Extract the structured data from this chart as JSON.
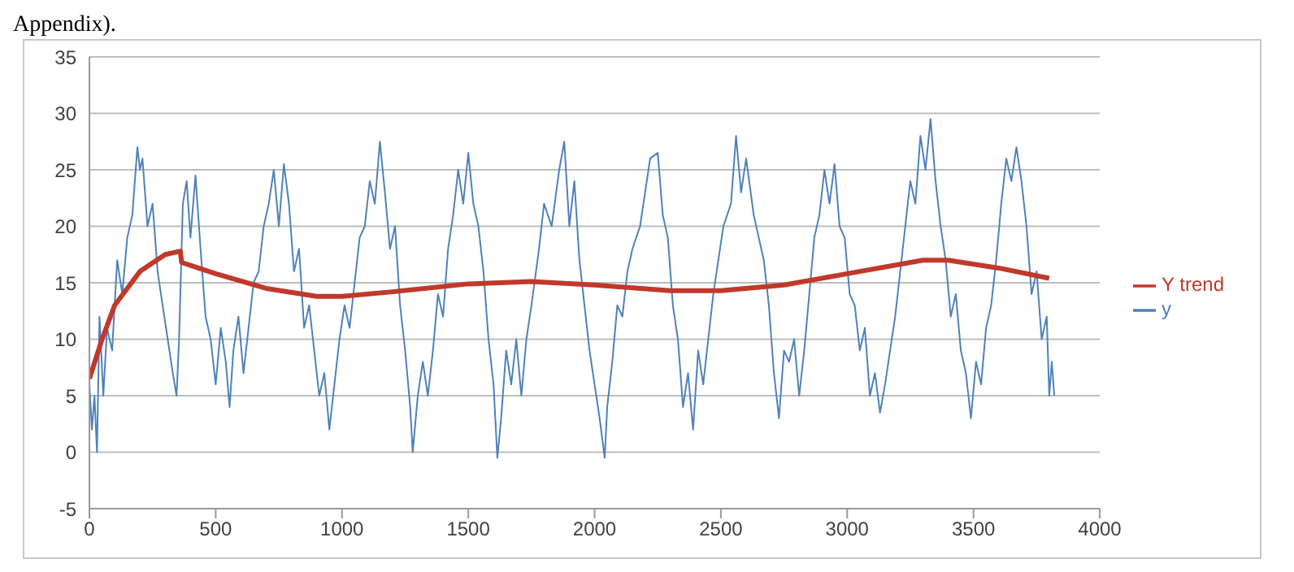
{
  "chart_data": {
    "type": "line",
    "annotations": [
      "Appendix)."
    ],
    "xlim": [
      0,
      4000
    ],
    "xticks": [
      0,
      500,
      1000,
      1500,
      2000,
      2500,
      3000,
      3500,
      4000
    ],
    "ylim": [
      -5,
      35
    ],
    "yticks": [
      -5,
      0,
      5,
      10,
      15,
      20,
      25,
      30,
      35
    ],
    "grid": "y",
    "legend": "right",
    "marker": "none",
    "line_style": "solid",
    "series": [
      {
        "name": "y",
        "color": "#4f81bd",
        "x": [
          0,
          10,
          20,
          30,
          40,
          55,
          70,
          90,
          110,
          130,
          150,
          170,
          190,
          200,
          210,
          230,
          250,
          270,
          290,
          310,
          330,
          345,
          355,
          370,
          385,
          400,
          420,
          440,
          460,
          480,
          500,
          520,
          540,
          555,
          570,
          590,
          610,
          630,
          650,
          670,
          690,
          710,
          730,
          750,
          770,
          790,
          810,
          830,
          850,
          870,
          890,
          910,
          930,
          950,
          970,
          990,
          1010,
          1030,
          1050,
          1070,
          1090,
          1110,
          1130,
          1150,
          1170,
          1190,
          1210,
          1230,
          1250,
          1270,
          1280,
          1300,
          1320,
          1340,
          1360,
          1380,
          1400,
          1420,
          1440,
          1460,
          1480,
          1500,
          1520,
          1540,
          1560,
          1580,
          1600,
          1615,
          1630,
          1650,
          1670,
          1690,
          1710,
          1730,
          1750,
          1780,
          1800,
          1830,
          1860,
          1880,
          1900,
          1920,
          1940,
          1960,
          1980,
          2000,
          2020,
          2040,
          2050,
          2070,
          2090,
          2110,
          2130,
          2150,
          2180,
          2200,
          2220,
          2250,
          2270,
          2290,
          2310,
          2330,
          2350,
          2370,
          2390,
          2410,
          2430,
          2450,
          2470,
          2490,
          2510,
          2540,
          2560,
          2580,
          2600,
          2630,
          2650,
          2670,
          2690,
          2710,
          2730,
          2750,
          2770,
          2790,
          2810,
          2830,
          2850,
          2870,
          2890,
          2910,
          2930,
          2950,
          2970,
          2990,
          3010,
          3030,
          3050,
          3070,
          3090,
          3110,
          3130,
          3150,
          3170,
          3190,
          3210,
          3230,
          3250,
          3270,
          3290,
          3310,
          3330,
          3350,
          3370,
          3390,
          3410,
          3430,
          3450,
          3470,
          3490,
          3510,
          3530,
          3550,
          3570,
          3590,
          3610,
          3630,
          3650,
          3670,
          3690,
          3710,
          3730,
          3750,
          3770,
          3790,
          3800,
          3810,
          3820
        ],
        "values": [
          6,
          2,
          5,
          0,
          12,
          5,
          11,
          9,
          17,
          14,
          19,
          21,
          27,
          25,
          26,
          20,
          22,
          16,
          13,
          10,
          7,
          5,
          10,
          22,
          24,
          19,
          24.5,
          18,
          12,
          10,
          6,
          11,
          8,
          4,
          9,
          12,
          7,
          11,
          15,
          16,
          20,
          22,
          25,
          20,
          25.5,
          22,
          16,
          18,
          11,
          13,
          9,
          5,
          7,
          2,
          6,
          10,
          13,
          11,
          15,
          19,
          20,
          24,
          22,
          27.5,
          23,
          18,
          20,
          13,
          9,
          4,
          0,
          5,
          8,
          5,
          9,
          14,
          12,
          18,
          21,
          25,
          22,
          26.5,
          22,
          20,
          16,
          10,
          6,
          -0.5,
          3,
          9,
          6,
          10,
          5,
          10,
          13,
          18,
          22,
          20,
          25,
          27.5,
          20,
          24,
          17,
          13,
          9,
          6,
          3,
          -0.5,
          4,
          8,
          13,
          12,
          16,
          18,
          20,
          23,
          26,
          26.5,
          21,
          19,
          13,
          10,
          4,
          7,
          2,
          9,
          6,
          10,
          14,
          17,
          20,
          22,
          28,
          23,
          26,
          21,
          19,
          17,
          13,
          7,
          3,
          9,
          8,
          10,
          5,
          9,
          14,
          19,
          21,
          25,
          22,
          25.5,
          20,
          19,
          14,
          13,
          9,
          11,
          5,
          7,
          3.5,
          6,
          9,
          12,
          16,
          20,
          24,
          22,
          28,
          25,
          29.5,
          24,
          20,
          17,
          12,
          14,
          9,
          7,
          3,
          8,
          6,
          11,
          13,
          17,
          22,
          26,
          24,
          27,
          24,
          20,
          14,
          16,
          10,
          12,
          5,
          8,
          5
        ]
      },
      {
        "name": "Y trend",
        "color": "#c0392b",
        "x": [
          0,
          50,
          100,
          200,
          300,
          360,
          365,
          500,
          700,
          900,
          1000,
          1200,
          1500,
          1750,
          2000,
          2300,
          2500,
          2750,
          3000,
          3300,
          3400,
          3600,
          3800
        ],
        "values": [
          6.5,
          10,
          13,
          16,
          17.5,
          17.8,
          16.8,
          15.8,
          14.5,
          13.8,
          13.8,
          14.2,
          14.9,
          15.1,
          14.8,
          14.3,
          14.3,
          14.8,
          15.8,
          17,
          17,
          16.3,
          15.4
        ]
      }
    ]
  }
}
